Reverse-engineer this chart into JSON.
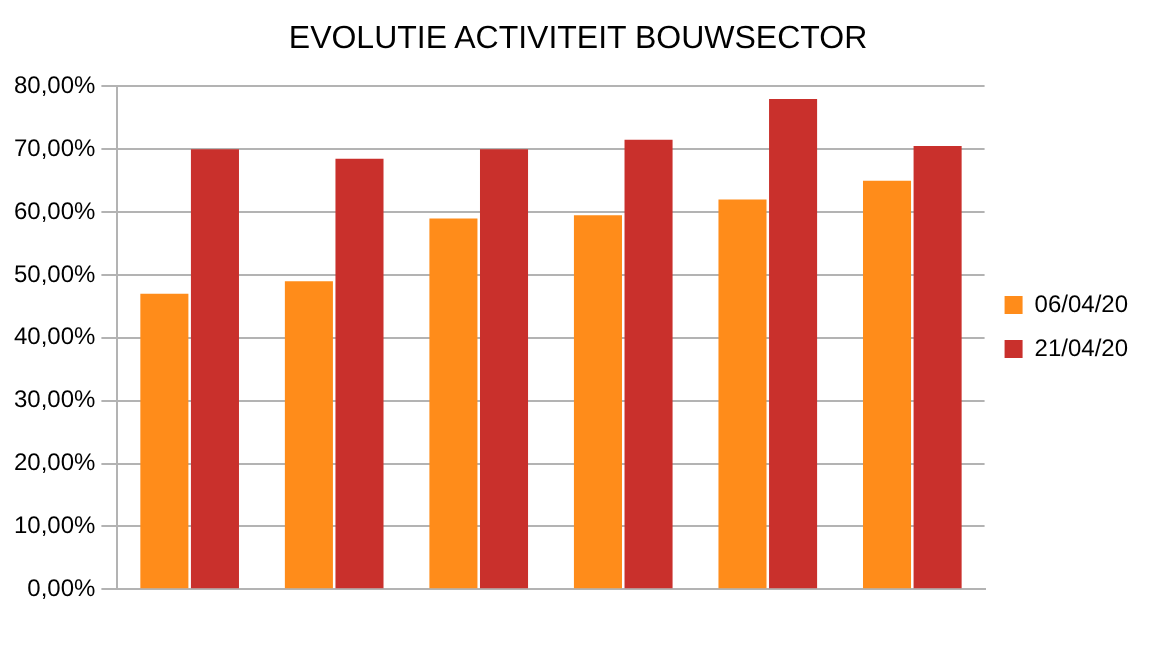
{
  "chart_data": {
    "type": "bar",
    "title": "EVOLUTIE ACTIVITEIT BOUWSECTOR",
    "categories": [
      null,
      null,
      null,
      null,
      null,
      null
    ],
    "series": [
      {
        "name": "06/04/20",
        "color": "#ff8c1a",
        "values": [
          47,
          49,
          59,
          59.5,
          62,
          65
        ]
      },
      {
        "name": "21/04/20",
        "color": "#c9302c",
        "values": [
          70,
          68.5,
          70,
          71.5,
          78,
          70.5
        ]
      }
    ],
    "ylim": [
      0,
      80
    ],
    "yticks": [
      {
        "value": 0,
        "label": "0,00%"
      },
      {
        "value": 10,
        "label": "10,00%"
      },
      {
        "value": 20,
        "label": "20,00%"
      },
      {
        "value": 30,
        "label": "30,00%"
      },
      {
        "value": 40,
        "label": "40,00%"
      },
      {
        "value": 50,
        "label": "50,00%"
      },
      {
        "value": 60,
        "label": "60,00%"
      },
      {
        "value": 70,
        "label": "70,00%"
      },
      {
        "value": 80,
        "label": "80,00%"
      }
    ],
    "grid": "y",
    "legend": "right"
  }
}
